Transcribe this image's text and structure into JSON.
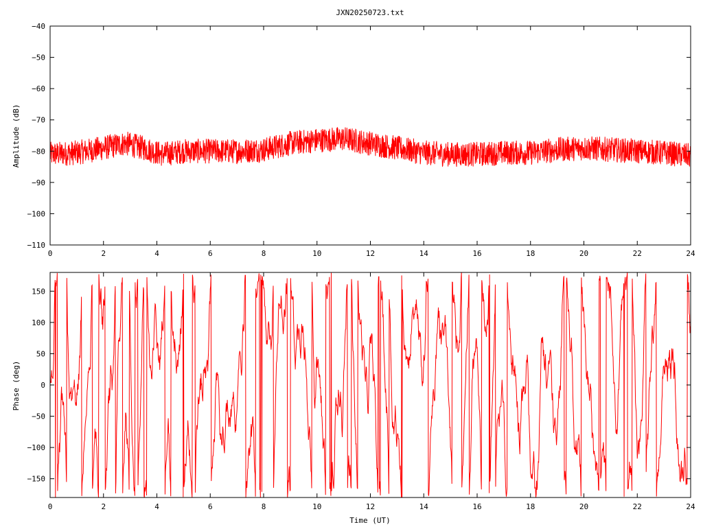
{
  "title": "JXN20250723.txt",
  "colors": {
    "series": "#ff0000",
    "axis": "#000000",
    "background": "#ffffff"
  },
  "chart_data": [
    {
      "type": "line",
      "ylabel": "Amplitude (dB)",
      "xlim": [
        0,
        24
      ],
      "ylim": [
        -110,
        -40
      ],
      "x_ticks": [
        0,
        2,
        4,
        6,
        8,
        10,
        12,
        14,
        16,
        18,
        20,
        22,
        24
      ],
      "y_ticks": [
        -110,
        -100,
        -90,
        -80,
        -70,
        -60,
        -50,
        -40
      ],
      "grid": false,
      "series": [
        {
          "color": "#ff0000",
          "noise_db": 4,
          "envelope": {
            "x": [
              0,
              1,
              2,
              2.8,
              3.5,
              4.2,
              5,
              6,
              7,
              8,
              9,
              10,
              11,
              12,
              13,
              14,
              15,
              16,
              17,
              18,
              19,
              20,
              21,
              22,
              23,
              24
            ],
            "y": [
              -81,
              -80.5,
              -79,
              -77.5,
              -79,
              -81,
              -80,
              -80,
              -80,
              -79.5,
              -77.5,
              -76.5,
              -76,
              -77.5,
              -79,
              -80.5,
              -81,
              -81,
              -80.5,
              -80.5,
              -79.5,
              -79,
              -79.5,
              -80,
              -80.5,
              -81.5
            ]
          }
        }
      ]
    },
    {
      "type": "line",
      "xlabel": "Time (UT)",
      "ylabel": "Phase (deg)",
      "xlim": [
        0,
        24
      ],
      "ylim": [
        -180,
        180
      ],
      "x_ticks": [
        0,
        2,
        4,
        6,
        8,
        10,
        12,
        14,
        16,
        18,
        20,
        22,
        24
      ],
      "y_ticks": [
        -150,
        -100,
        -50,
        0,
        50,
        100,
        150
      ],
      "grid": false,
      "series": [
        {
          "color": "#ff0000",
          "wrapped_range": [
            -180,
            180
          ],
          "description_values": "rapidly varying phase wrapping between -180 and 180 degrees"
        }
      ]
    }
  ]
}
